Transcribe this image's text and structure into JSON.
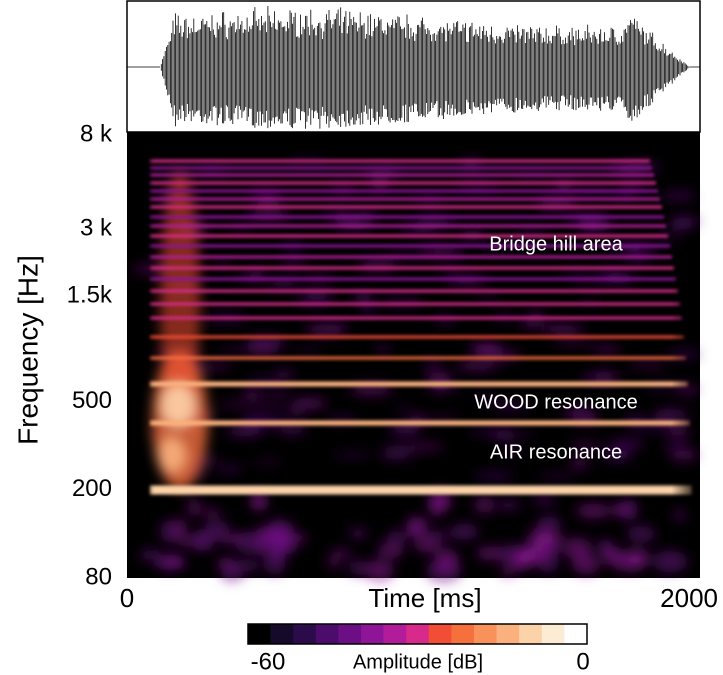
{
  "chart_data": {
    "type": "spectrogram",
    "xlabel": "Time [ms]",
    "ylabel": "Frequency [Hz]",
    "xlim": [
      0,
      2000
    ],
    "xticks": [
      0,
      2000
    ],
    "ylim": [
      80,
      8000
    ],
    "yscale": "log",
    "yticks": [
      80,
      200,
      500,
      {
        "value": 1500,
        "label": "1.5k"
      },
      {
        "value": 3000,
        "label": "3 k"
      },
      {
        "value": 8000,
        "label": "8 k"
      }
    ],
    "annotations": [
      "Bridge hill area",
      "WOOD resonance",
      "AIR resonance"
    ],
    "colorbar": {
      "label": "Amplitude [dB]",
      "clim": [
        -60,
        0
      ],
      "cticks": [
        -60,
        0
      ],
      "colors": [
        "#000000",
        "#150a2a",
        "#2c0b4a",
        "#4b0c6b",
        "#6c0f85",
        "#8e1597",
        "#b21b9a",
        "#d82a8a",
        "#f24e35",
        "#f6703e",
        "#f8915a",
        "#fab17e",
        "#fcd3a8",
        "#fdecd4",
        "#ffffff"
      ]
    }
  }
}
